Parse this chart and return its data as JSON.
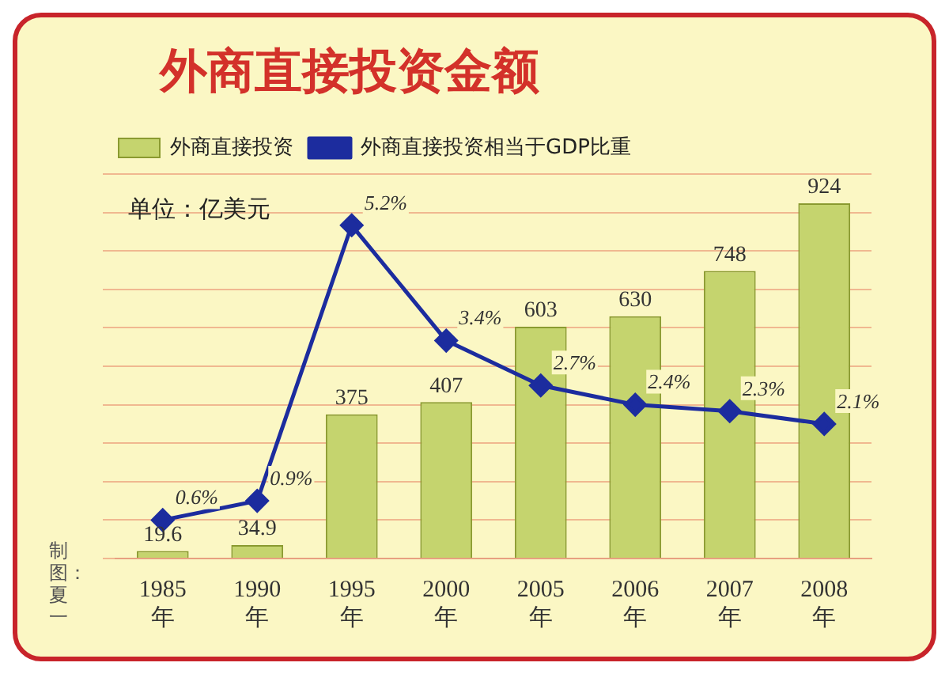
{
  "chart_data": {
    "type": "bar",
    "title": "外商直接投资金额",
    "categories": [
      "1985年",
      "1990年",
      "1995年",
      "2000年",
      "2005年",
      "2006年",
      "2007年",
      "2008年"
    ],
    "series": [
      {
        "name": "外商直接投资",
        "color": "#c5d46e",
        "values": [
          19.6,
          34.9,
          375,
          407,
          603,
          630,
          748,
          924
        ],
        "value_labels": [
          "19.6",
          "34.9",
          "375",
          "407",
          "603",
          "630",
          "748",
          "924"
        ]
      },
      {
        "name": "外商直接投资相当于GDP比重",
        "type": "line",
        "axis": "y2",
        "color": "#1c2c9e",
        "values": [
          0.6,
          0.9,
          5.2,
          3.4,
          2.7,
          2.4,
          2.3,
          2.1
        ],
        "value_labels": [
          "0.6%",
          "0.9%",
          "5.2%",
          "3.4%",
          "2.7%",
          "2.4%",
          "2.3%",
          "2.1%"
        ]
      }
    ],
    "ylim": [
      0,
      1000
    ],
    "yticks": [
      {
        "value": 0,
        "label": null
      },
      {
        "value": 100,
        "label": null
      },
      {
        "value": 200,
        "label": null
      },
      {
        "value": 300,
        "label": null
      },
      {
        "value": 400,
        "label": null
      },
      {
        "value": 500,
        "label": null
      },
      {
        "value": 600,
        "label": null
      },
      {
        "value": 700,
        "label": null
      },
      {
        "value": 800,
        "label": null
      },
      {
        "value": 900,
        "label": null
      },
      {
        "value": 1000,
        "label": null
      }
    ],
    "y2lim": [
      0,
      6
    ],
    "tick_labels": "x",
    "grid": "y",
    "legend": "top left",
    "marker": "diamond",
    "line_style": "solid",
    "annotations": [
      "单位：亿美元",
      "制图：夏一"
    ]
  }
}
